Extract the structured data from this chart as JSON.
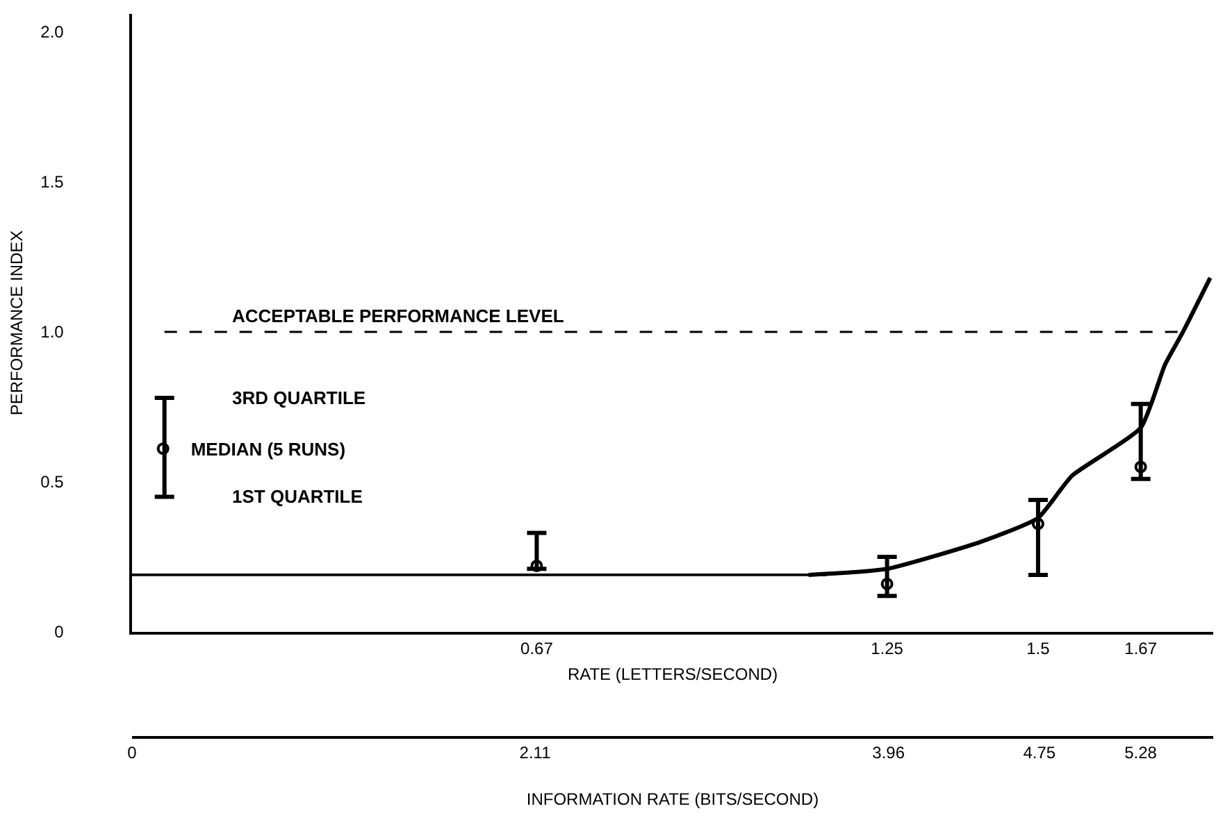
{
  "chart_data": {
    "type": "scatter",
    "xlabel": "RATE (LETTERS/SECOND)",
    "ylabel": "PERFORMANCE INDEX",
    "x2label": "INFORMATION RATE (BITS/SECOND)",
    "xlim": [
      0,
      1.79
    ],
    "xticks": [
      0.67,
      1.25,
      1.5,
      1.67
    ],
    "x2lim": [
      0,
      5.66
    ],
    "x2ticks": [
      0,
      2.11,
      3.96,
      4.75,
      5.28
    ],
    "ylim": [
      0,
      2.06
    ],
    "yticks": [
      0,
      0.5,
      {
        "value": 1,
        "label": "1.0"
      },
      1.5,
      {
        "value": 2,
        "label": "2.0"
      }
    ],
    "series": [
      {
        "name": "MEDIAN (5 RUNS)",
        "color": "#000000",
        "marker": "circle",
        "x": [
          0.67,
          1.25,
          1.5,
          1.67
        ],
        "values": [
          0.22,
          0.16,
          0.36,
          0.55
        ],
        "errors": [
          [
            0.21,
            0.33
          ],
          [
            0.12,
            0.25
          ],
          [
            0.19,
            0.44
          ],
          [
            0.51,
            0.76
          ]
        ]
      },
      {
        "type": "line",
        "color": "#000000",
        "x": [
          0,
          1.15
        ],
        "values": [
          0.19,
          0.19
        ]
      },
      {
        "type": "line",
        "color": "#000000",
        "x": [
          1.12,
          1.25,
          1.405,
          1.5,
          1.556,
          1.67,
          1.71,
          1.74,
          1.785
        ],
        "values": [
          0.19,
          0.21,
          0.3,
          0.38,
          0.52,
          0.68,
          0.89,
          1.0,
          1.18
        ]
      }
    ],
    "ref_lines": [
      {
        "axis": "y",
        "value": 1.0,
        "label": "ACCEPTABLE PERFORMANCE LEVEL",
        "line_style": "dashed",
        "color": "#000000"
      }
    ],
    "annotations": [
      "3RD QUARTILE",
      "1ST QUARTILE"
    ],
    "legend": "left"
  }
}
